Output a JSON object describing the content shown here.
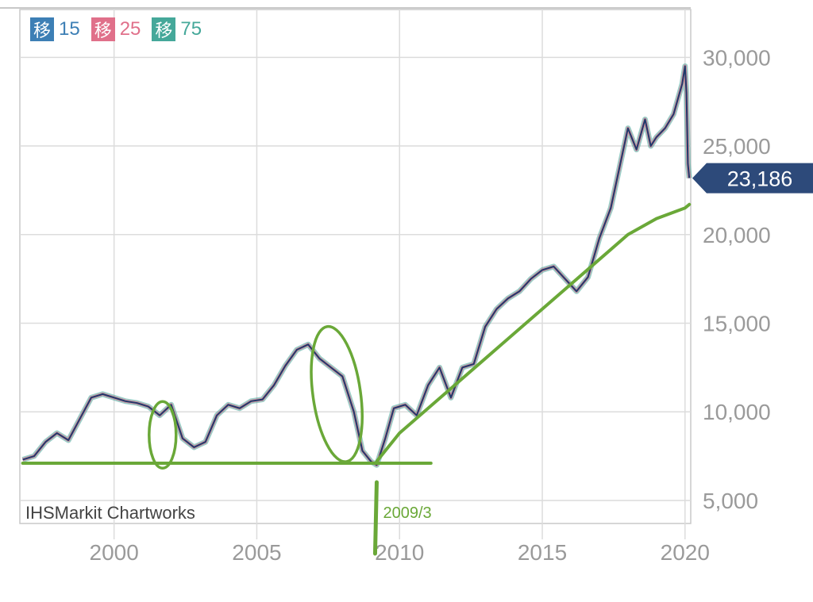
{
  "chart_data": {
    "type": "line",
    "legend": [
      {
        "label": "移",
        "value": "15",
        "color": "#3d7fb5"
      },
      {
        "label": "移",
        "value": "25",
        "color": "#e0708a"
      },
      {
        "label": "移",
        "value": "75",
        "color": "#45a89a"
      }
    ],
    "y_ticks": [
      "30,000",
      "25,000",
      "20,000",
      "15,000",
      "10,000",
      "5,000"
    ],
    "x_ticks": [
      "2000",
      "2005",
      "2010",
      "2015",
      "2020"
    ],
    "ylim": [
      3700,
      32700
    ],
    "xlim": [
      1996.7,
      2020.2
    ],
    "grid": true,
    "current_price": {
      "label": "23,186",
      "value": 23186
    },
    "source": "IHSMarkit Chartworks",
    "annotation": {
      "label": "2009/3",
      "x": 2009.2
    },
    "colors": {
      "price": "#1f3a6b",
      "annotation": "#6aa838",
      "badge": "#2d4a7a"
    },
    "series": [
      {
        "x": [
          1996.8,
          1997.2,
          1997.6,
          1998.0,
          1998.4,
          1998.8,
          1999.2,
          1999.6,
          2000.0,
          2000.4,
          2000.8,
          2001.2,
          2001.6,
          2002.0,
          2002.4,
          2002.8,
          2003.2,
          2003.6,
          2004.0,
          2004.4,
          2004.8,
          2005.2,
          2005.6,
          2006.0,
          2006.4,
          2006.8,
          2007.2,
          2007.6,
          2008.0,
          2008.4,
          2008.7,
          2009.0,
          2009.2,
          2009.5,
          2009.8,
          2010.2,
          2010.6,
          2011.0,
          2011.4,
          2011.8,
          2012.2,
          2012.6,
          2013.0,
          2013.4,
          2013.8,
          2014.2,
          2014.6,
          2015.0,
          2015.4,
          2015.8,
          2016.2,
          2016.6,
          2017.0,
          2017.4,
          2017.8,
          2018.0,
          2018.3,
          2018.6,
          2018.8,
          2019.0,
          2019.3,
          2019.6,
          2019.9,
          2020.0,
          2020.05,
          2020.1,
          2020.15
        ],
        "values": [
          7300,
          7500,
          8300,
          8800,
          8400,
          9600,
          10800,
          11000,
          10800,
          10600,
          10500,
          10300,
          9800,
          10400,
          8500,
          8000,
          8300,
          9800,
          10400,
          10200,
          10600,
          10700,
          11500,
          12600,
          13500,
          13800,
          13000,
          12500,
          12000,
          10000,
          7800,
          7200,
          7000,
          8500,
          10200,
          10400,
          9800,
          11500,
          12500,
          10800,
          12500,
          12700,
          14800,
          15800,
          16400,
          16800,
          17500,
          18000,
          18200,
          17500,
          16800,
          17600,
          19800,
          21500,
          24500,
          26000,
          24800,
          26500,
          25000,
          25500,
          26000,
          26800,
          28500,
          29500,
          28000,
          24000,
          23186
        ]
      },
      {
        "x": [
          1996.8,
          1999,
          2001,
          2003,
          2005,
          2007,
          2009.2
        ],
        "values": [
          7100,
          7100,
          7100,
          7100,
          7100,
          7100,
          7100
        ]
      },
      {
        "x": [
          2009.2,
          2010,
          2011,
          2012,
          2013,
          2014,
          2015,
          2016,
          2017,
          2018,
          2019,
          2020,
          2020.15
        ],
        "values": [
          7200,
          8800,
          10200,
          11600,
          13000,
          14400,
          15800,
          17200,
          18600,
          20000,
          20900,
          21500,
          21700
        ]
      }
    ]
  }
}
